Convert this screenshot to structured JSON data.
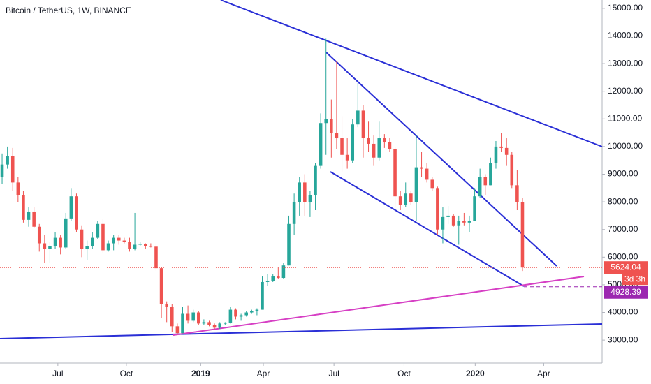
{
  "chart_data": {
    "type": "candlestick",
    "title": "Bitcoin / TetherUS, 1W, BINANCE",
    "x": [
      0,
      1,
      2,
      3,
      4,
      5,
      6,
      7,
      8,
      9,
      10,
      11,
      12,
      13,
      14,
      15,
      16,
      17,
      18,
      19,
      20,
      21,
      22,
      23,
      24,
      25,
      26,
      27,
      28,
      29,
      30,
      31,
      32,
      33,
      34,
      35,
      36,
      37,
      38,
      39,
      40,
      41,
      42,
      43,
      44,
      45,
      46,
      47,
      48,
      49,
      50,
      51,
      52,
      53,
      54,
      55,
      56,
      57,
      58,
      59,
      60,
      61,
      62,
      63,
      64,
      65,
      66,
      67,
      68,
      69,
      70,
      71,
      72,
      73,
      74,
      75,
      76,
      77,
      78,
      79,
      80,
      81,
      82,
      83,
      84,
      85,
      86,
      87,
      88,
      89,
      90,
      91,
      92,
      93,
      94,
      95,
      96,
      97,
      98
    ],
    "open": [
      8900,
      9350,
      9650,
      8700,
      8250,
      7350,
      7650,
      7100,
      6500,
      6300,
      6400,
      6700,
      6350,
      7400,
      8200,
      7000,
      6300,
      6400,
      6700,
      7200,
      6250,
      6500,
      6700,
      6600,
      6550,
      6300,
      6450,
      6480,
      6400,
      6380,
      5600,
      4300,
      4200,
      3500,
      3250,
      3950,
      3700,
      4000,
      3600,
      3650,
      3550,
      3450,
      3600,
      3620,
      4100,
      3850,
      3900,
      4000,
      4050,
      4100,
      5100,
      5150,
      5300,
      5250,
      5700,
      7200,
      8000,
      8700,
      8000,
      8250,
      9300,
      10850,
      11000,
      10500,
      10300,
      9700,
      9500,
      10800,
      11300,
      10300,
      10100,
      9600,
      10300,
      10150,
      9900,
      8200,
      7900,
      8300,
      8000,
      9250,
      9200,
      8800,
      8500,
      7000,
      7450,
      7500,
      7150,
      7300,
      7250,
      7300,
      8200,
      8900,
      8600,
      9400,
      10000,
      9950,
      9700,
      8600,
      8000
    ],
    "high": [
      9750,
      10000,
      9950,
      8900,
      8400,
      7800,
      7800,
      7200,
      6800,
      6550,
      6900,
      6800,
      7600,
      8500,
      8300,
      7150,
      6600,
      6900,
      7300,
      7400,
      6600,
      6800,
      6800,
      6700,
      6700,
      7600,
      6550,
      6500,
      6500,
      6500,
      5650,
      4400,
      4300,
      3600,
      4200,
      4250,
      4100,
      4050,
      3750,
      3700,
      3600,
      3650,
      3650,
      4200,
      4150,
      3950,
      4050,
      4100,
      4150,
      5300,
      5400,
      5400,
      5650,
      5800,
      7500,
      8300,
      8900,
      9000,
      8400,
      9400,
      11200,
      13900,
      11700,
      13100,
      11100,
      10300,
      11000,
      12300,
      11500,
      10900,
      10400,
      10900,
      10450,
      10300,
      10000,
      8400,
      8700,
      8400,
      10400,
      9800,
      9400,
      8900,
      8550,
      7800,
      7850,
      7550,
      7500,
      7600,
      7500,
      8500,
      9200,
      9000,
      9600,
      10200,
      10500,
      10300,
      9800,
      9150,
      8150
    ],
    "low": [
      8650,
      9200,
      8400,
      8000,
      7250,
      7100,
      7050,
      6200,
      5800,
      5800,
      6300,
      6100,
      6300,
      7300,
      6900,
      6000,
      5900,
      6300,
      6650,
      6150,
      6200,
      6250,
      6450,
      6500,
      6200,
      6250,
      6400,
      6300,
      6350,
      5500,
      3800,
      3650,
      3300,
      3200,
      3250,
      3600,
      3650,
      3550,
      3550,
      3500,
      3400,
      3400,
      3550,
      3600,
      3750,
      3700,
      3850,
      3950,
      3900,
      4100,
      4950,
      5100,
      5200,
      5200,
      5700,
      6800,
      7500,
      7500,
      7450,
      7700,
      9200,
      9700,
      9600,
      9900,
      9100,
      9200,
      9400,
      10700,
      9600,
      9800,
      9300,
      9500,
      9950,
      9800,
      7800,
      7700,
      7800,
      7900,
      7300,
      8900,
      8700,
      8400,
      6800,
      6500,
      7200,
      7100,
      6450,
      7150,
      6900,
      7300,
      8150,
      8250,
      8600,
      9200,
      9800,
      9300,
      8500,
      7700,
      5500
    ],
    "close": [
      9350,
      9650,
      8700,
      8250,
      7350,
      7650,
      7100,
      6500,
      6300,
      6400,
      6700,
      6350,
      7400,
      8200,
      7000,
      6300,
      6400,
      6700,
      7200,
      6250,
      6500,
      6700,
      6600,
      6550,
      6300,
      6450,
      6480,
      6400,
      6380,
      5600,
      4300,
      4200,
      3500,
      3250,
      3950,
      3700,
      4000,
      3600,
      3650,
      3550,
      3450,
      3600,
      3620,
      4100,
      3850,
      3900,
      4000,
      4050,
      4100,
      5100,
      5150,
      5300,
      5250,
      5700,
      7200,
      8000,
      8700,
      8000,
      8250,
      9300,
      10850,
      11000,
      10500,
      10300,
      9700,
      9500,
      10800,
      11300,
      10300,
      10100,
      9600,
      10300,
      10150,
      9900,
      8200,
      7900,
      8300,
      8000,
      9250,
      9200,
      8800,
      8500,
      7000,
      7450,
      7500,
      7150,
      7300,
      7250,
      7300,
      8200,
      8900,
      8600,
      9400,
      10000,
      9950,
      9700,
      8600,
      8000,
      5624.04
    ],
    "up_color": "#26a69a",
    "down_color": "#ef5350",
    "xlim": [
      -0.4,
      113
    ],
    "xticks": [
      {
        "value": 10.5,
        "label": "Jul"
      },
      {
        "value": 23.4,
        "label": "Oct"
      },
      {
        "value": 37.4,
        "label": "2019"
      },
      {
        "value": 49.2,
        "label": "Apr"
      },
      {
        "value": 62.5,
        "label": "Jul"
      },
      {
        "value": 75.7,
        "label": "Oct"
      },
      {
        "value": 89.1,
        "label": "2020"
      },
      {
        "value": 102,
        "label": "Apr"
      }
    ],
    "ylim": [
      2170,
      15300
    ],
    "yticks": [
      {
        "value": 3000,
        "label": "3000.00"
      },
      {
        "value": 4000,
        "label": "4000.00"
      },
      {
        "value": 5000,
        "label": "5000.00"
      },
      {
        "value": 6000,
        "label": "6000.00"
      },
      {
        "value": 7000,
        "label": "7000.00"
      },
      {
        "value": 8000,
        "label": "8000.00"
      },
      {
        "value": 9000,
        "label": "9000.00"
      },
      {
        "value": 10000,
        "label": "10000.00"
      },
      {
        "value": 11000,
        "label": "11000.00"
      },
      {
        "value": 12000,
        "label": "12000.00"
      },
      {
        "value": 13000,
        "label": "13000.00"
      },
      {
        "value": 14000,
        "label": "14000.00"
      },
      {
        "value": 15000,
        "label": "15000.00"
      }
    ],
    "last_price": 5624.04,
    "countdown": "3d 3h",
    "marker_price": 4928.39
  }
}
